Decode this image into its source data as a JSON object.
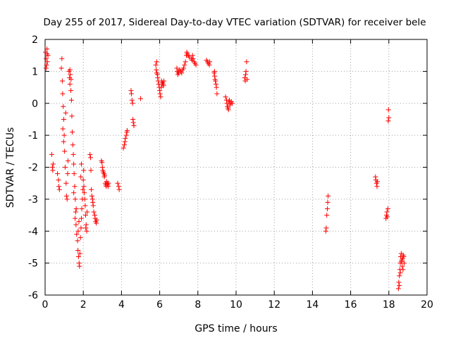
{
  "chart_data": {
    "type": "scatter",
    "title": "Day 255 of 2017, Sidereal Day-to-day VTEC variation (SDTVAR) for receiver bele",
    "xlabel": "GPS time / hours",
    "ylabel": "SDTVAR / TECUs",
    "xlim": [
      0,
      20
    ],
    "ylim": [
      -6,
      2
    ],
    "xticks": [
      0,
      2,
      4,
      6,
      8,
      10,
      12,
      14,
      16,
      18,
      20
    ],
    "yticks": [
      -6,
      -5,
      -4,
      -3,
      -2,
      -1,
      0,
      1,
      2
    ],
    "grid": true,
    "marker": "+",
    "series": [
      {
        "name": "SDTVAR",
        "color": "#ff0000",
        "points": [
          [
            0.02,
            1.6
          ],
          [
            0.05,
            1.4
          ],
          [
            0.08,
            1.2
          ],
          [
            0.1,
            1.7
          ],
          [
            0.12,
            1.3
          ],
          [
            0.15,
            1.5
          ],
          [
            0.05,
            1.1
          ],
          [
            0.1,
            1.55
          ],
          [
            0.35,
            -1.6
          ],
          [
            0.38,
            -2.0
          ],
          [
            0.4,
            -2.1
          ],
          [
            0.42,
            -1.9
          ],
          [
            0.65,
            -2.2
          ],
          [
            0.7,
            -2.4
          ],
          [
            0.72,
            -2.6
          ],
          [
            0.75,
            -2.7
          ],
          [
            0.85,
            1.1
          ],
          [
            0.9,
            0.7
          ],
          [
            0.92,
            0.3
          ],
          [
            0.95,
            -0.1
          ],
          [
            0.98,
            -0.5
          ],
          [
            1.0,
            -1.0
          ],
          [
            1.02,
            -1.5
          ],
          [
            1.05,
            -2.0
          ],
          [
            0.88,
            1.4
          ],
          [
            0.93,
            -0.8
          ],
          [
            0.97,
            -1.2
          ],
          [
            1.08,
            -0.3
          ],
          [
            1.1,
            -2.5
          ],
          [
            1.12,
            -2.9
          ],
          [
            1.15,
            -3.0
          ],
          [
            1.18,
            -2.2
          ],
          [
            1.2,
            -1.8
          ],
          [
            1.25,
            1.0
          ],
          [
            1.28,
            0.8
          ],
          [
            1.3,
            0.6
          ],
          [
            1.32,
            0.9
          ],
          [
            1.35,
            0.4
          ],
          [
            1.38,
            0.1
          ],
          [
            1.4,
            -0.4
          ],
          [
            1.42,
            -0.9
          ],
          [
            1.45,
            -1.3
          ],
          [
            1.48,
            -1.6
          ],
          [
            1.3,
            1.05
          ],
          [
            1.36,
            0.75
          ],
          [
            1.5,
            -1.9
          ],
          [
            1.52,
            -2.2
          ],
          [
            1.55,
            -2.6
          ],
          [
            1.58,
            -3.0
          ],
          [
            1.6,
            -3.4
          ],
          [
            1.62,
            -3.8
          ],
          [
            1.65,
            -4.1
          ],
          [
            1.5,
            -2.8
          ],
          [
            1.57,
            -3.6
          ],
          [
            1.63,
            -3.3
          ],
          [
            1.7,
            -4.3
          ],
          [
            1.72,
            -4.6
          ],
          [
            1.75,
            -4.8
          ],
          [
            1.78,
            -5.0
          ],
          [
            1.8,
            -5.1
          ],
          [
            1.82,
            -4.7
          ],
          [
            1.85,
            -4.2
          ],
          [
            1.73,
            -4.0
          ],
          [
            1.77,
            -3.7
          ],
          [
            1.88,
            -3.9
          ],
          [
            1.9,
            -3.6
          ],
          [
            1.92,
            -3.3
          ],
          [
            1.95,
            -3.0
          ],
          [
            1.98,
            -2.7
          ],
          [
            2.0,
            -2.4
          ],
          [
            2.02,
            -2.1
          ],
          [
            1.9,
            -1.9
          ],
          [
            1.87,
            -2.3
          ],
          [
            2.05,
            -2.8
          ],
          [
            2.08,
            -3.0
          ],
          [
            2.1,
            -3.2
          ],
          [
            2.12,
            -3.5
          ],
          [
            2.15,
            -3.8
          ],
          [
            2.18,
            -4.0
          ],
          [
            2.2,
            -3.4
          ],
          [
            2.03,
            -2.6
          ],
          [
            2.13,
            -3.9
          ],
          [
            2.35,
            -1.6
          ],
          [
            2.38,
            -1.7
          ],
          [
            2.4,
            -2.1
          ],
          [
            2.42,
            -2.7
          ],
          [
            2.45,
            -2.9
          ],
          [
            2.48,
            -3.0
          ],
          [
            2.5,
            -3.1
          ],
          [
            2.52,
            -3.2
          ],
          [
            2.55,
            -3.4
          ],
          [
            2.6,
            -3.5
          ],
          [
            2.62,
            -3.6
          ],
          [
            2.65,
            -3.7
          ],
          [
            2.68,
            -3.75
          ],
          [
            2.7,
            -3.65
          ],
          [
            2.95,
            -1.8
          ],
          [
            2.98,
            -1.85
          ],
          [
            3.0,
            -2.0
          ],
          [
            3.02,
            -2.1
          ],
          [
            3.05,
            -2.15
          ],
          [
            3.08,
            -2.2
          ],
          [
            3.1,
            -2.3
          ],
          [
            3.12,
            -2.25
          ],
          [
            3.15,
            -2.5
          ],
          [
            3.18,
            -2.55
          ],
          [
            3.2,
            -2.6
          ],
          [
            3.22,
            -2.45
          ],
          [
            3.25,
            -2.5
          ],
          [
            3.28,
            -2.55
          ],
          [
            3.3,
            -2.6
          ],
          [
            3.32,
            -2.5
          ],
          [
            3.8,
            -2.5
          ],
          [
            3.85,
            -2.6
          ],
          [
            3.88,
            -2.7
          ],
          [
            4.1,
            -1.4
          ],
          [
            4.15,
            -1.3
          ],
          [
            4.18,
            -1.2
          ],
          [
            4.2,
            -1.1
          ],
          [
            4.25,
            -1.0
          ],
          [
            4.28,
            -0.9
          ],
          [
            4.3,
            -0.85
          ],
          [
            4.5,
            0.4
          ],
          [
            4.52,
            0.3
          ],
          [
            4.55,
            0.1
          ],
          [
            4.58,
            0.0
          ],
          [
            4.6,
            -0.5
          ],
          [
            4.62,
            -0.6
          ],
          [
            4.65,
            -0.7
          ],
          [
            5.0,
            0.15
          ],
          [
            5.8,
            1.2
          ],
          [
            5.82,
            1.05
          ],
          [
            5.85,
            0.95
          ],
          [
            5.88,
            0.9
          ],
          [
            5.9,
            0.8
          ],
          [
            5.92,
            0.7
          ],
          [
            5.95,
            0.6
          ],
          [
            5.98,
            0.5
          ],
          [
            6.0,
            0.4
          ],
          [
            5.84,
            1.3
          ],
          [
            6.02,
            0.3
          ],
          [
            6.05,
            0.2
          ],
          [
            6.08,
            0.5
          ],
          [
            6.1,
            0.7
          ],
          [
            6.12,
            0.6
          ],
          [
            6.15,
            0.65
          ],
          [
            6.18,
            0.6
          ],
          [
            6.2,
            0.55
          ],
          [
            6.22,
            0.7
          ],
          [
            6.9,
            1.1
          ],
          [
            6.92,
            1.0
          ],
          [
            6.95,
            0.9
          ],
          [
            6.98,
            0.95
          ],
          [
            7.0,
            1.0
          ],
          [
            7.05,
            1.05
          ],
          [
            7.1,
            1.0
          ],
          [
            7.15,
            0.95
          ],
          [
            7.2,
            1.05
          ],
          [
            7.25,
            1.1
          ],
          [
            7.3,
            1.2
          ],
          [
            7.35,
            1.3
          ],
          [
            7.4,
            1.5
          ],
          [
            7.42,
            1.6
          ],
          [
            7.45,
            1.55
          ],
          [
            7.5,
            1.5
          ],
          [
            7.55,
            1.45
          ],
          [
            7.65,
            1.4
          ],
          [
            7.7,
            1.35
          ],
          [
            7.72,
            1.5
          ],
          [
            7.75,
            1.4
          ],
          [
            7.8,
            1.3
          ],
          [
            7.85,
            1.25
          ],
          [
            7.9,
            1.2
          ],
          [
            8.45,
            1.35
          ],
          [
            8.5,
            1.3
          ],
          [
            8.55,
            1.25
          ],
          [
            8.6,
            1.2
          ],
          [
            8.62,
            1.3
          ],
          [
            8.85,
            0.95
          ],
          [
            8.88,
            0.85
          ],
          [
            8.9,
            0.75
          ],
          [
            8.92,
            0.7
          ],
          [
            8.95,
            0.6
          ],
          [
            8.97,
            0.5
          ],
          [
            9.0,
            0.3
          ],
          [
            8.87,
            1.0
          ],
          [
            9.45,
            0.2
          ],
          [
            9.5,
            0.1
          ],
          [
            9.52,
            0.0
          ],
          [
            9.55,
            -0.1
          ],
          [
            9.58,
            -0.15
          ],
          [
            9.6,
            -0.2
          ],
          [
            9.62,
            0.05
          ],
          [
            9.65,
            0.1
          ],
          [
            9.7,
            0.0
          ],
          [
            9.75,
            0.05
          ],
          [
            9.8,
            0.0
          ],
          [
            9.68,
            -0.05
          ],
          [
            10.45,
            0.8
          ],
          [
            10.48,
            0.7
          ],
          [
            10.5,
            0.9
          ],
          [
            10.52,
            1.0
          ],
          [
            10.55,
            1.3
          ],
          [
            10.58,
            0.75
          ],
          [
            14.7,
            -4.0
          ],
          [
            14.72,
            -3.9
          ],
          [
            14.75,
            -3.5
          ],
          [
            14.78,
            -3.3
          ],
          [
            14.8,
            -3.1
          ],
          [
            14.82,
            -2.9
          ],
          [
            17.3,
            -2.3
          ],
          [
            17.32,
            -2.4
          ],
          [
            17.35,
            -2.5
          ],
          [
            17.38,
            -2.6
          ],
          [
            17.4,
            -2.45
          ],
          [
            17.85,
            -3.6
          ],
          [
            17.88,
            -3.5
          ],
          [
            17.9,
            -3.4
          ],
          [
            17.92,
            -3.55
          ],
          [
            17.95,
            -3.3
          ],
          [
            17.98,
            -0.2
          ],
          [
            18.0,
            -0.45
          ],
          [
            17.97,
            -0.55
          ],
          [
            18.5,
            -5.8
          ],
          [
            18.52,
            -5.6
          ],
          [
            18.55,
            -5.4
          ],
          [
            18.58,
            -5.2
          ],
          [
            18.6,
            -5.0
          ],
          [
            18.62,
            -4.8
          ],
          [
            18.65,
            -4.7
          ],
          [
            18.68,
            -4.9
          ],
          [
            18.7,
            -5.1
          ],
          [
            18.72,
            -4.85
          ],
          [
            18.75,
            -4.75
          ],
          [
            18.78,
            -4.8
          ],
          [
            18.8,
            -5.0
          ],
          [
            18.55,
            -5.7
          ],
          [
            18.6,
            -5.3
          ],
          [
            18.66,
            -4.95
          ],
          [
            18.74,
            -5.2
          ]
        ]
      }
    ]
  }
}
